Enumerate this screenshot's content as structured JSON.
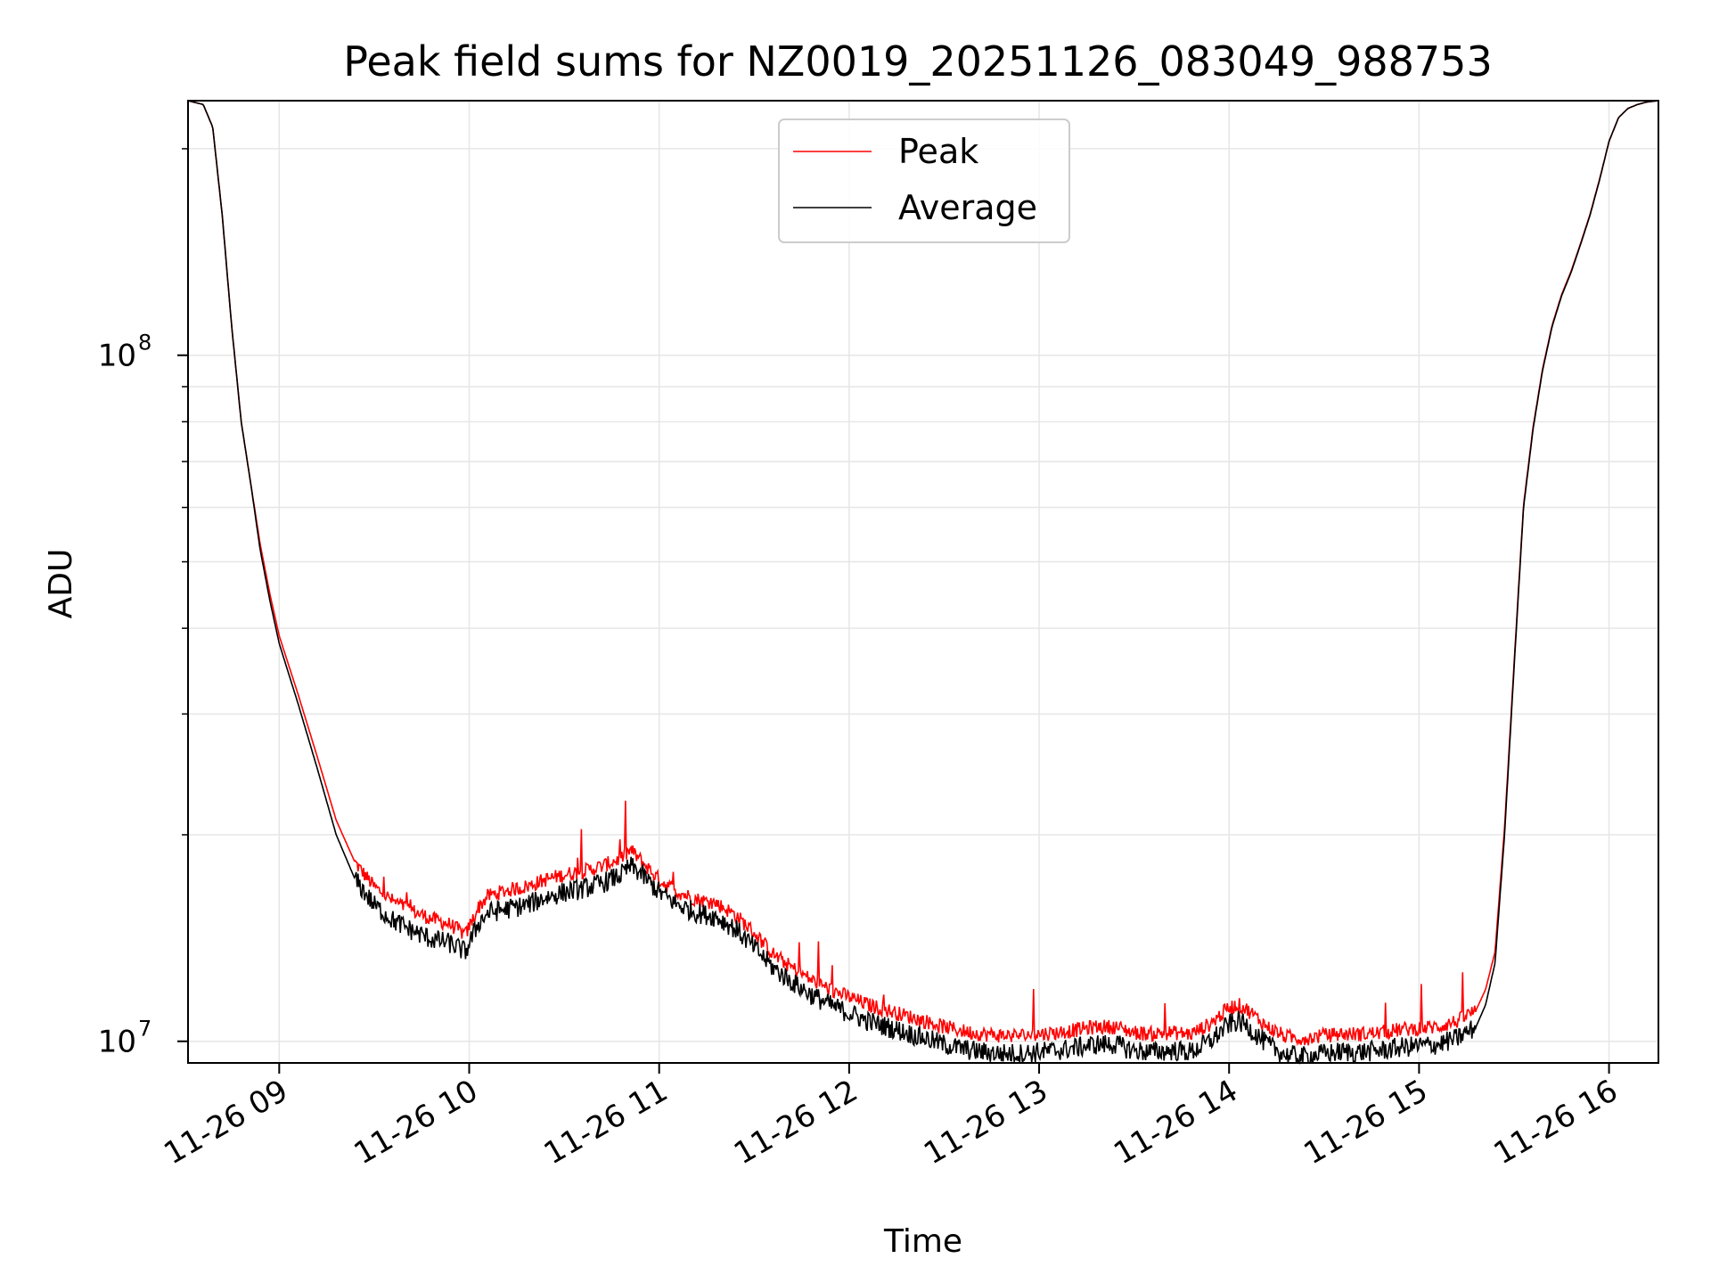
{
  "chart_data": {
    "type": "line",
    "title": "Peak field sums for NZ0019_20251126_083049_988753",
    "xlabel": "Time",
    "ylabel": "ADU",
    "yscale": "log",
    "ylim": [
      9300000,
      235000000
    ],
    "xlim": [
      8.52,
      16.26
    ],
    "grid": true,
    "legend_position": "top-center",
    "x_ticks": [
      {
        "value": 9,
        "label": "11-26 09"
      },
      {
        "value": 10,
        "label": "11-26 10"
      },
      {
        "value": 11,
        "label": "11-26 11"
      },
      {
        "value": 12,
        "label": "11-26 12"
      },
      {
        "value": 13,
        "label": "11-26 13"
      },
      {
        "value": 14,
        "label": "11-26 14"
      },
      {
        "value": 15,
        "label": "11-26 15"
      },
      {
        "value": 16,
        "label": "11-26 16"
      }
    ],
    "y_ticks": [
      {
        "value": 10000000,
        "base": "10",
        "exp": "7"
      },
      {
        "value": 100000000,
        "base": "10",
        "exp": "8"
      }
    ],
    "series": [
      {
        "name": "Peak",
        "color": "#ff0000"
      },
      {
        "name": "Average",
        "color": "#000000"
      }
    ],
    "x_hours": [
      8.52,
      8.6,
      8.65,
      8.7,
      8.75,
      8.8,
      8.85,
      8.9,
      8.95,
      9.0,
      9.1,
      9.2,
      9.3,
      9.4,
      9.5,
      9.6,
      9.7,
      9.8,
      9.9,
      9.98,
      10.05,
      10.1,
      10.2,
      10.3,
      10.4,
      10.5,
      10.6,
      10.7,
      10.8,
      10.85,
      10.9,
      11.0,
      11.1,
      11.2,
      11.3,
      11.4,
      11.5,
      11.6,
      11.7,
      11.8,
      11.9,
      12.0,
      12.1,
      12.2,
      12.3,
      12.4,
      12.5,
      12.6,
      12.7,
      12.8,
      12.9,
      13.0,
      13.1,
      13.2,
      13.3,
      13.4,
      13.5,
      13.6,
      13.7,
      13.8,
      13.9,
      14.0,
      14.05,
      14.1,
      14.2,
      14.3,
      14.4,
      14.5,
      14.6,
      14.7,
      14.8,
      14.9,
      15.0,
      15.1,
      15.2,
      15.3,
      15.35,
      15.4,
      15.45,
      15.5,
      15.55,
      15.6,
      15.65,
      15.7,
      15.75,
      15.8,
      15.85,
      15.9,
      15.95,
      16.0,
      16.05,
      16.1,
      16.15,
      16.2,
      16.26
    ],
    "average_adu": [
      235000000,
      232000000,
      215000000,
      160000000,
      110000000,
      80000000,
      65000000,
      52000000,
      44000000,
      38000000,
      31000000,
      25000000,
      20000000,
      17200000,
      15800000,
      15000000,
      14500000,
      14100000,
      13900000,
      13500000,
      14900000,
      15400000,
      15600000,
      15800000,
      16200000,
      16500000,
      16700000,
      17000000,
      17500000,
      18000000,
      17600000,
      16500000,
      15800000,
      15400000,
      15200000,
      14600000,
      13700000,
      12800000,
      12200000,
      11700000,
      11300000,
      11000000,
      10700000,
      10500000,
      10300000,
      10100000,
      9900000,
      9750000,
      9650000,
      9600000,
      9600000,
      9650000,
      9700000,
      9800000,
      9900000,
      9900000,
      9700000,
      9650000,
      9700000,
      9650000,
      10000000,
      10600000,
      10700000,
      10500000,
      9900000,
      9550000,
      9500000,
      9600000,
      9650000,
      9650000,
      9700000,
      9800000,
      9850000,
      9900000,
      10100000,
      10500000,
      11300000,
      13000000,
      20000000,
      35000000,
      60000000,
      78000000,
      95000000,
      110000000,
      122000000,
      132000000,
      145000000,
      160000000,
      180000000,
      205000000,
      222000000,
      229000000,
      232000000,
      234000000,
      235000000
    ],
    "peak_adu": [
      235000000,
      232000000,
      215000000,
      160000000,
      110000000,
      80000000,
      65000000,
      53000000,
      45000000,
      39000000,
      32000000,
      26000000,
      21000000,
      18200000,
      16800000,
      16000000,
      15500000,
      15100000,
      14800000,
      14300000,
      15700000,
      16300000,
      16600000,
      16800000,
      17200000,
      17500000,
      17700000,
      18000000,
      18500000,
      19000000,
      18400000,
      17200000,
      16500000,
      16100000,
      15900000,
      15300000,
      14400000,
      13400000,
      12800000,
      12300000,
      11900000,
      11600000,
      11300000,
      11100000,
      10900000,
      10700000,
      10500000,
      10350000,
      10250000,
      10200000,
      10200000,
      10250000,
      10300000,
      10400000,
      10500000,
      10500000,
      10300000,
      10250000,
      10300000,
      10250000,
      10600000,
      11200000,
      11300000,
      11100000,
      10500000,
      10150000,
      10100000,
      10200000,
      10250000,
      10250000,
      10300000,
      10400000,
      10450000,
      10500000,
      10700000,
      11100000,
      11900000,
      13500000,
      20500000,
      35500000,
      60500000,
      78500000,
      95500000,
      110500000,
      122500000,
      132500000,
      145500000,
      160500000,
      180500000,
      205000000,
      222000000,
      229000000,
      232000000,
      234000000,
      235000000
    ]
  }
}
